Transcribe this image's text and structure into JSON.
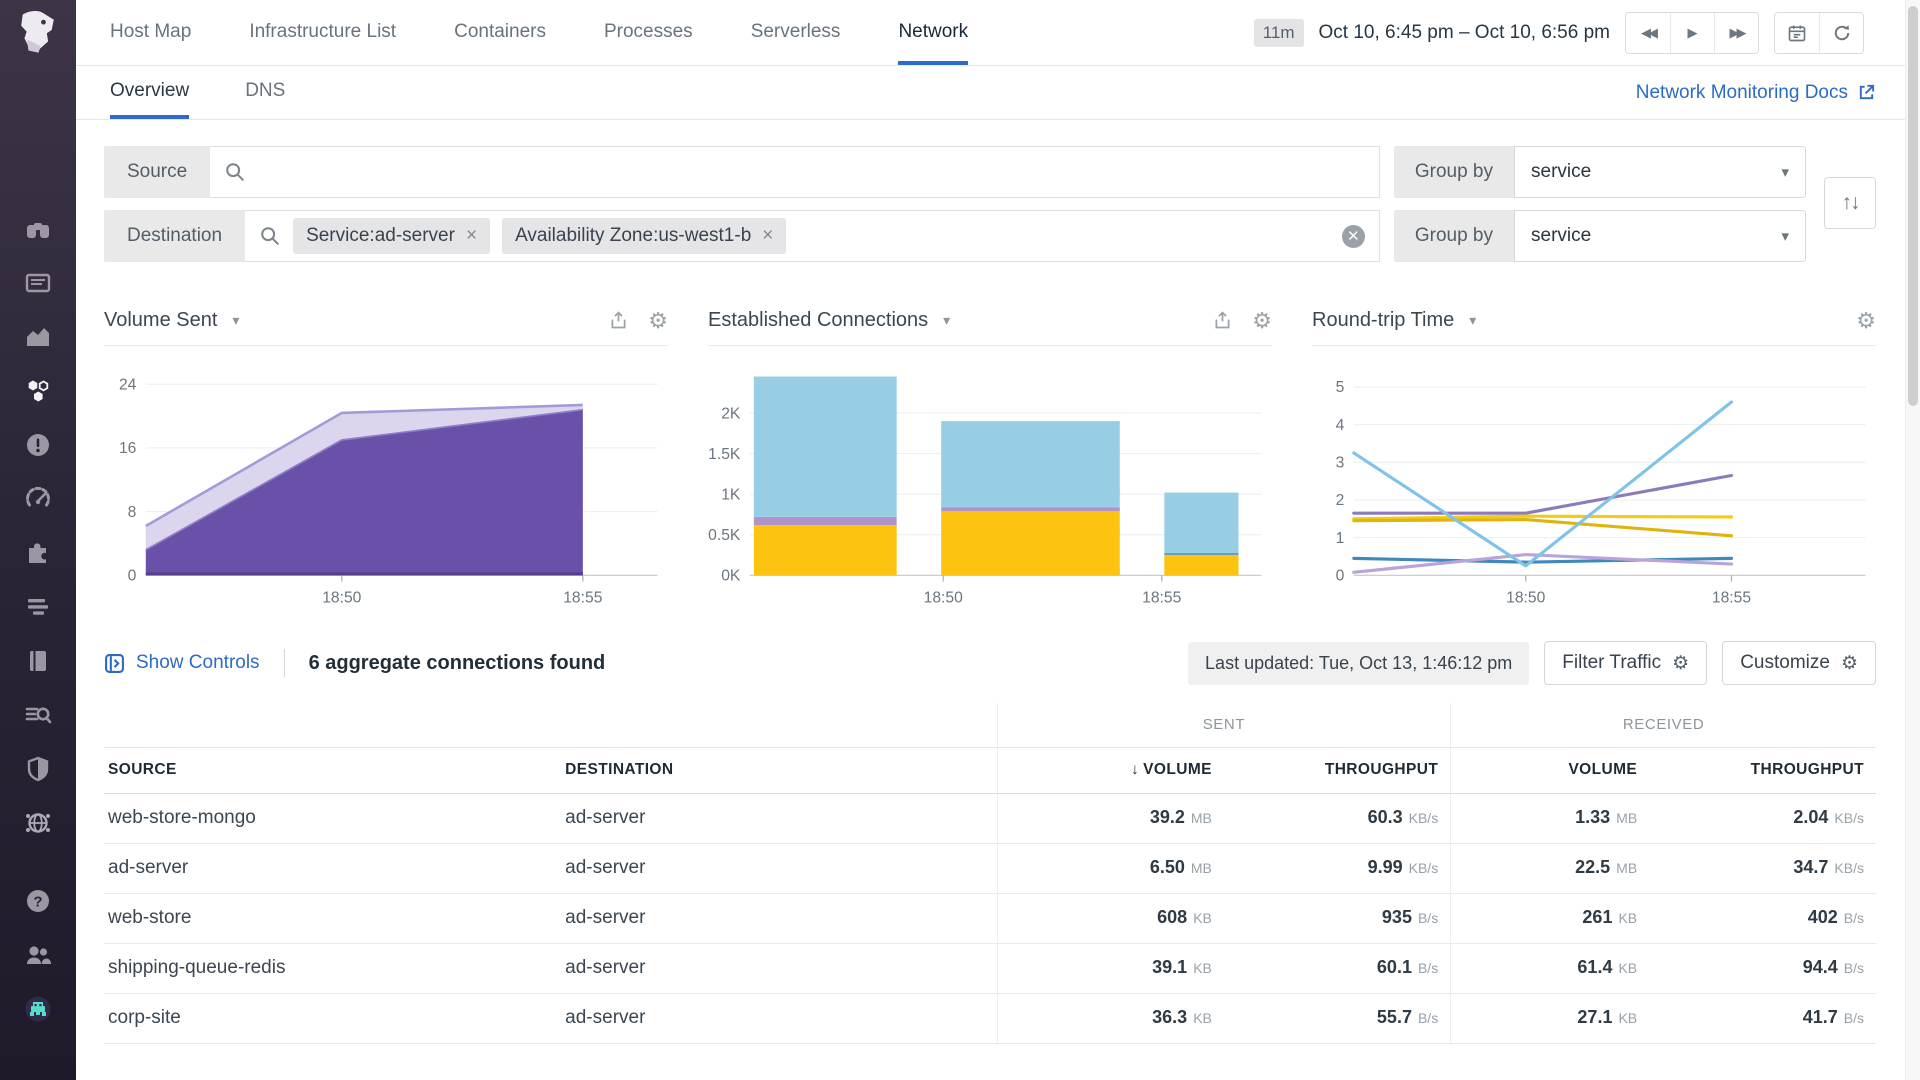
{
  "sidebar": {
    "icons": [
      "datadog-logo",
      "watchdog",
      "dashboards",
      "metrics",
      "infrastructure",
      "monitors",
      "apm",
      "integrations",
      "traces",
      "notebooks",
      "logs",
      "security",
      "network",
      "help",
      "users",
      "bits-ai"
    ]
  },
  "topnav": {
    "tabs": [
      "Host Map",
      "Infrastructure List",
      "Containers",
      "Processes",
      "Serverless",
      "Network"
    ],
    "active_tab": "Network",
    "duration_badge": "11m",
    "time_range": "Oct 10, 6:45 pm – Oct 10, 6:56 pm"
  },
  "subnav": {
    "tabs": [
      "Overview",
      "DNS"
    ],
    "active_tab": "Overview",
    "docs_link": "Network Monitoring Docs"
  },
  "filters": {
    "source_label": "Source",
    "destination_label": "Destination",
    "group_by_label": "Group by",
    "source_group_by": "service",
    "destination_group_by": "service",
    "destination_tags": [
      "Service:ad-server",
      "Availability Zone:us-west1-b"
    ],
    "caret": "▾"
  },
  "toolbar": {
    "show_controls": "Show Controls",
    "summary": "6 aggregate connections found",
    "last_updated": "Last updated: Tue, Oct 13, 1:46:12 pm",
    "filter_traffic": "Filter Traffic",
    "customize": "Customize"
  },
  "table": {
    "group_sent": "SENT",
    "group_received": "RECEIVED",
    "col_source": "SOURCE",
    "col_destination": "DESTINATION",
    "col_volume": "VOLUME",
    "col_throughput": "THROUGHPUT",
    "sort_arrow": "↓",
    "rows": [
      {
        "source": "web-store-mongo",
        "destination": "ad-server",
        "sent_volume": "39.2",
        "sent_volume_unit": "MB",
        "sent_throughput": "60.3",
        "sent_throughput_unit": "KB/s",
        "recv_volume": "1.33",
        "recv_volume_unit": "MB",
        "recv_throughput": "2.04",
        "recv_throughput_unit": "KB/s"
      },
      {
        "source": "ad-server",
        "destination": "ad-server",
        "sent_volume": "6.50",
        "sent_volume_unit": "MB",
        "sent_throughput": "9.99",
        "sent_throughput_unit": "KB/s",
        "recv_volume": "22.5",
        "recv_volume_unit": "MB",
        "recv_throughput": "34.7",
        "recv_throughput_unit": "KB/s"
      },
      {
        "source": "web-store",
        "destination": "ad-server",
        "sent_volume": "608",
        "sent_volume_unit": "KB",
        "sent_throughput": "935",
        "sent_throughput_unit": "B/s",
        "recv_volume": "261",
        "recv_volume_unit": "KB",
        "recv_throughput": "402",
        "recv_throughput_unit": "B/s"
      },
      {
        "source": "shipping-queue-redis",
        "destination": "ad-server",
        "sent_volume": "39.1",
        "sent_volume_unit": "KB",
        "sent_throughput": "60.1",
        "sent_throughput_unit": "B/s",
        "recv_volume": "61.4",
        "recv_volume_unit": "KB",
        "recv_throughput": "94.4",
        "recv_throughput_unit": "B/s"
      },
      {
        "source": "corp-site",
        "destination": "ad-server",
        "sent_volume": "36.3",
        "sent_volume_unit": "KB",
        "sent_throughput": "55.7",
        "sent_throughput_unit": "B/s",
        "recv_volume": "27.1",
        "recv_volume_unit": "KB",
        "recv_throughput": "41.7",
        "recv_throughput_unit": "B/s"
      }
    ]
  },
  "chart_data": [
    {
      "type": "area",
      "title": "Volume Sent",
      "ylim": [
        0,
        26.5
      ],
      "y_max": 26.5,
      "y_ticks": [
        {
          "v": 0,
          "label": "0"
        },
        {
          "v": 8,
          "label": "8"
        },
        {
          "v": 16,
          "label": "16"
        },
        {
          "v": 24,
          "label": "24"
        }
      ],
      "x_ticks": [
        {
          "pos": 0.383,
          "label": "18:50"
        },
        {
          "pos": 0.854,
          "label": "18:55"
        }
      ],
      "x_points": [
        0,
        0.383,
        0.854
      ],
      "baseline_color": "#53418d",
      "series": [
        {
          "name": "volume-sent-lower",
          "color": "#6950a8",
          "edge": "#8d7dc6",
          "values": [
            3.2,
            17,
            20.8
          ]
        },
        {
          "name": "volume-sent-total",
          "color": "#dbd6ee",
          "edge": "#a49ad8",
          "values": [
            6.2,
            20.4,
            21.4
          ]
        }
      ]
    },
    {
      "type": "stacked-bar",
      "title": "Established Connections",
      "ylim": [
        0,
        2600
      ],
      "y_max": 2600,
      "y_ticks": [
        {
          "v": 0,
          "label": "0K"
        },
        {
          "v": 500,
          "label": "0.5K"
        },
        {
          "v": 1000,
          "label": "1K"
        },
        {
          "v": 1500,
          "label": "1.5K"
        },
        {
          "v": 2000,
          "label": "2K"
        }
      ],
      "x_ticks": [
        {
          "pos": 0.378,
          "label": "18:50"
        },
        {
          "pos": 0.805,
          "label": "18:55"
        }
      ],
      "bars": [
        {
          "x0": 0.008,
          "x1": 0.287,
          "segments": [
            {
              "name": "yellow",
              "color": "#fac411",
              "v": 620
            },
            {
              "name": "purple",
              "color": "#b293c9",
              "v": 100
            },
            {
              "name": "blue",
              "color": "#97cee4",
              "v": 1730
            }
          ]
        },
        {
          "x0": 0.374,
          "x1": 0.723,
          "segments": [
            {
              "name": "yellow",
              "color": "#fac411",
              "v": 790
            },
            {
              "name": "purple",
              "color": "#b293c9",
              "v": 50
            },
            {
              "name": "blue",
              "color": "#97cee4",
              "v": 1060
            }
          ]
        },
        {
          "x0": 0.81,
          "x1": 0.955,
          "segments": [
            {
              "name": "yellow",
              "color": "#fac411",
              "v": 250
            },
            {
              "name": "divider",
              "color": "#6f9cb2",
              "v": 25
            },
            {
              "name": "blue",
              "color": "#97cee4",
              "v": 745
            }
          ]
        }
      ]
    },
    {
      "type": "line",
      "title": "Round-trip Time",
      "ylim": [
        0,
        5.6
      ],
      "y_max": 5.6,
      "y_ticks": [
        {
          "v": 0,
          "label": "0"
        },
        {
          "v": 1,
          "label": "1"
        },
        {
          "v": 2,
          "label": "2"
        },
        {
          "v": 3,
          "label": "3"
        },
        {
          "v": 4,
          "label": "4"
        },
        {
          "v": 5,
          "label": "5"
        }
      ],
      "x_ticks": [
        {
          "pos": 0.336,
          "label": "18:50"
        },
        {
          "pos": 0.738,
          "label": "18:55"
        }
      ],
      "x_points": [
        0,
        0.336,
        0.738
      ],
      "series": [
        {
          "name": "purple",
          "color": "#8b7abc",
          "values": [
            1.65,
            1.65,
            2.65
          ]
        },
        {
          "name": "yellow",
          "color": "#f2cb15",
          "values": [
            1.5,
            1.57,
            1.55
          ]
        },
        {
          "name": "gold",
          "color": "#e0b40f",
          "values": [
            1.45,
            1.48,
            1.05
          ]
        },
        {
          "name": "steel-blue",
          "color": "#4189bd",
          "values": [
            0.45,
            0.35,
            0.45
          ]
        },
        {
          "name": "lavender",
          "color": "#b9a4da",
          "values": [
            0.08,
            0.55,
            0.3
          ]
        },
        {
          "name": "sky",
          "color": "#7fc3e8",
          "values": [
            3.25,
            0.25,
            4.6
          ]
        }
      ]
    }
  ]
}
